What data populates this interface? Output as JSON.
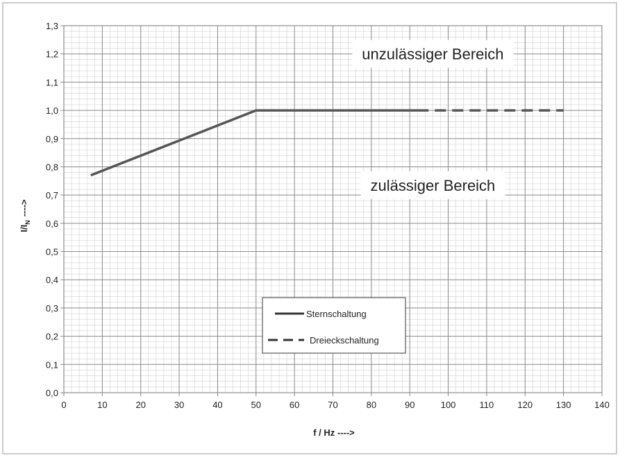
{
  "chart_data": {
    "type": "line",
    "xlabel": "f / Hz ---->",
    "ylabel_main": "I/I",
    "ylabel_sub": "N",
    "ylabel_tail": "---->",
    "xlim": [
      0,
      140
    ],
    "ylim": [
      0,
      1.3
    ],
    "x_ticks": [
      0,
      10,
      20,
      30,
      40,
      50,
      60,
      70,
      80,
      90,
      100,
      110,
      120,
      130,
      140
    ],
    "x_tick_labels": [
      "0",
      "10",
      "20",
      "30",
      "40",
      "50",
      "60",
      "70",
      "80",
      "90",
      "100",
      "110",
      "120",
      "130",
      "140"
    ],
    "y_ticks": [
      0,
      0.1,
      0.2,
      0.3,
      0.4,
      0.5,
      0.6,
      0.7,
      0.8,
      0.9,
      1.0,
      1.1,
      1.2,
      1.3
    ],
    "y_tick_labels": [
      "0,0",
      "0,1",
      "0,2",
      "0,3",
      "0,4",
      "0,5",
      "0,6",
      "0,7",
      "0,8",
      "0,9",
      "1,0",
      "1,1",
      "1,2",
      "1,3"
    ],
    "grid": true,
    "annotations": [
      {
        "text": "unzulässiger Bereich",
        "x": 96,
        "y": 1.2
      },
      {
        "text": "zulässiger Bereich",
        "x": 96,
        "y": 0.735
      }
    ],
    "series": [
      {
        "name": "Sternschaltung",
        "style": "solid",
        "color": "#555555",
        "x": [
          7,
          50,
          92
        ],
        "y": [
          0.77,
          1.0,
          1.0
        ]
      },
      {
        "name": "Dreieckschaltung",
        "style": "dashed",
        "color": "#555555",
        "x": [
          92,
          130
        ],
        "y": [
          1.0,
          1.0
        ]
      }
    ],
    "legend_position": "bottom-center"
  }
}
